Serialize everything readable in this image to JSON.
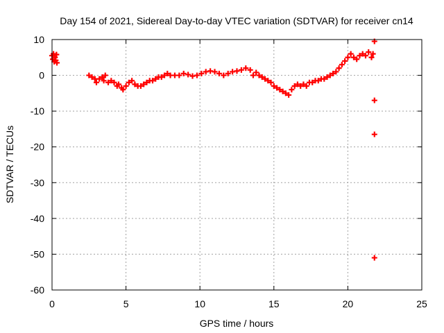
{
  "chart_data": {
    "type": "scatter",
    "title": "Day 154 of 2021, Sidereal Day-to-day VTEC variation (SDTVAR) for receiver cn14",
    "xlabel": "GPS time / hours",
    "ylabel": "SDTVAR / TECUs",
    "xlim": [
      0,
      25
    ],
    "ylim": [
      -60,
      10
    ],
    "xticks": [
      0,
      5,
      10,
      15,
      20,
      25
    ],
    "yticks": [
      -60,
      -50,
      -40,
      -30,
      -20,
      -10,
      0,
      10
    ],
    "xtick_labels": [
      "0",
      "5",
      "10",
      "15",
      "20",
      "25"
    ],
    "ytick_labels": [
      "-60",
      "-50",
      "-40",
      "-30",
      "-20",
      "-10",
      "0",
      "10"
    ],
    "grid": true,
    "series": [
      {
        "name": "SDTVAR",
        "color": "#ff0000",
        "marker": "plus",
        "points": [
          [
            0.0,
            5.5
          ],
          [
            0.05,
            4.5
          ],
          [
            0.1,
            6.0
          ],
          [
            0.15,
            3.8
          ],
          [
            0.2,
            5.0
          ],
          [
            0.25,
            4.2
          ],
          [
            0.3,
            5.8
          ],
          [
            0.33,
            3.5
          ],
          [
            2.5,
            0.0
          ],
          [
            2.7,
            -0.5
          ],
          [
            2.9,
            -1.0
          ],
          [
            3.0,
            -2.0
          ],
          [
            3.2,
            -1.0
          ],
          [
            3.4,
            -0.5
          ],
          [
            3.5,
            -1.5
          ],
          [
            3.6,
            0.0
          ],
          [
            3.8,
            -2.0
          ],
          [
            4.0,
            -1.5
          ],
          [
            4.2,
            -2.0
          ],
          [
            4.4,
            -3.0
          ],
          [
            4.5,
            -2.5
          ],
          [
            4.7,
            -3.5
          ],
          [
            4.8,
            -4.0
          ],
          [
            5.0,
            -3.0
          ],
          [
            5.2,
            -2.0
          ],
          [
            5.4,
            -1.5
          ],
          [
            5.6,
            -2.5
          ],
          [
            5.8,
            -3.0
          ],
          [
            6.0,
            -3.0
          ],
          [
            6.2,
            -2.5
          ],
          [
            6.4,
            -2.0
          ],
          [
            6.6,
            -1.5
          ],
          [
            6.8,
            -1.5
          ],
          [
            7.0,
            -1.0
          ],
          [
            7.2,
            -0.5
          ],
          [
            7.4,
            -0.5
          ],
          [
            7.6,
            0.0
          ],
          [
            7.8,
            0.5
          ],
          [
            8.0,
            0.0
          ],
          [
            8.3,
            0.0
          ],
          [
            8.6,
            0.0
          ],
          [
            8.9,
            0.5
          ],
          [
            9.2,
            0.2
          ],
          [
            9.5,
            -0.2
          ],
          [
            9.8,
            0.0
          ],
          [
            10.1,
            0.5
          ],
          [
            10.4,
            1.0
          ],
          [
            10.7,
            1.2
          ],
          [
            11.0,
            1.0
          ],
          [
            11.3,
            0.5
          ],
          [
            11.6,
            0.0
          ],
          [
            11.9,
            0.5
          ],
          [
            12.2,
            1.0
          ],
          [
            12.5,
            1.2
          ],
          [
            12.8,
            1.5
          ],
          [
            13.1,
            2.0
          ],
          [
            13.4,
            1.5
          ],
          [
            13.6,
            0.0
          ],
          [
            13.8,
            0.8
          ],
          [
            14.0,
            0.0
          ],
          [
            14.2,
            -0.5
          ],
          [
            14.4,
            -1.0
          ],
          [
            14.6,
            -1.5
          ],
          [
            14.8,
            -2.0
          ],
          [
            15.0,
            -3.0
          ],
          [
            15.2,
            -3.5
          ],
          [
            15.4,
            -4.0
          ],
          [
            15.6,
            -4.5
          ],
          [
            15.8,
            -5.0
          ],
          [
            16.0,
            -5.5
          ],
          [
            16.2,
            -4.0
          ],
          [
            16.4,
            -3.0
          ],
          [
            16.6,
            -2.5
          ],
          [
            16.8,
            -3.0
          ],
          [
            17.0,
            -2.5
          ],
          [
            17.2,
            -3.0
          ],
          [
            17.4,
            -2.0
          ],
          [
            17.6,
            -2.0
          ],
          [
            17.8,
            -1.5
          ],
          [
            18.0,
            -1.5
          ],
          [
            18.2,
            -1.0
          ],
          [
            18.4,
            -1.0
          ],
          [
            18.6,
            -0.5
          ],
          [
            18.8,
            0.0
          ],
          [
            19.0,
            0.5
          ],
          [
            19.2,
            1.0
          ],
          [
            19.4,
            2.0
          ],
          [
            19.6,
            3.0
          ],
          [
            19.8,
            4.0
          ],
          [
            20.0,
            5.0
          ],
          [
            20.2,
            6.0
          ],
          [
            20.4,
            5.0
          ],
          [
            20.6,
            4.5
          ],
          [
            20.8,
            5.5
          ],
          [
            21.0,
            6.0
          ],
          [
            21.2,
            5.5
          ],
          [
            21.4,
            6.5
          ],
          [
            21.6,
            5.0
          ],
          [
            21.7,
            6.0
          ],
          [
            21.8,
            9.5
          ],
          [
            21.8,
            -7.0
          ],
          [
            21.8,
            -16.5
          ],
          [
            21.8,
            -51.0
          ]
        ]
      }
    ]
  }
}
